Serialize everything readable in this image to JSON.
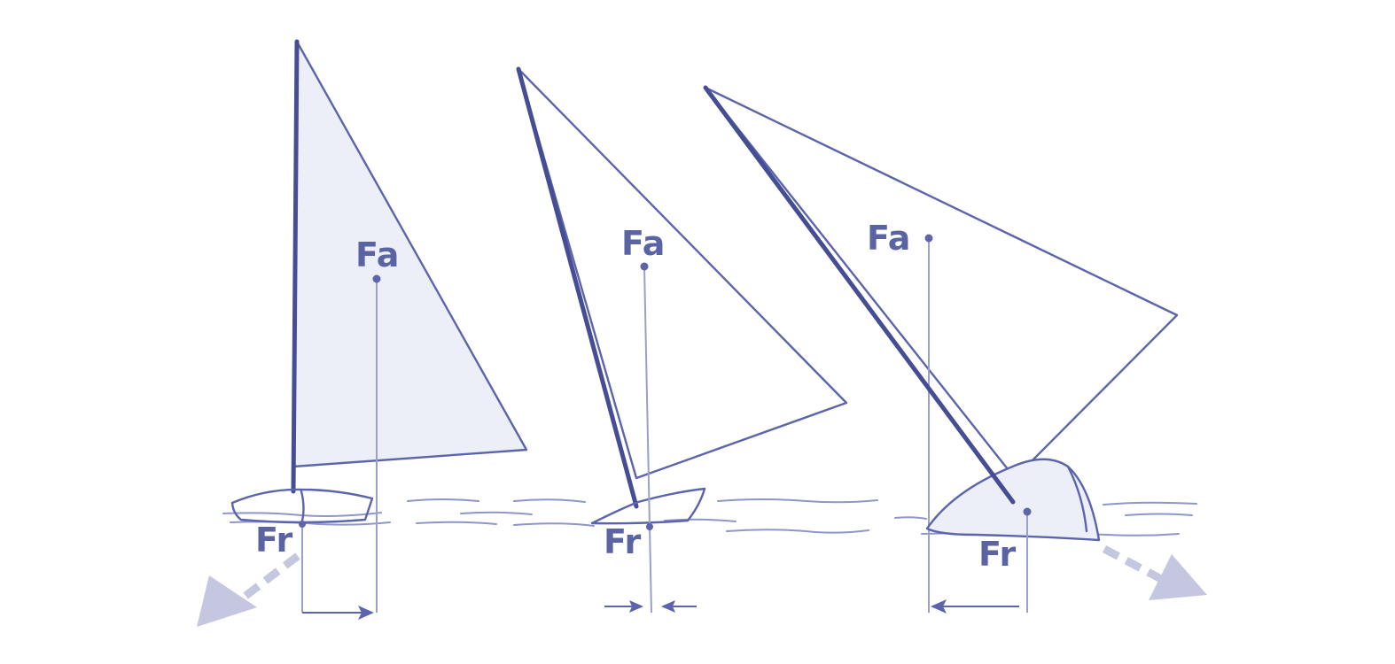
{
  "labels": {
    "force_a": "Fa",
    "force_r": "Fr"
  },
  "colors": {
    "line": "#5c64ac",
    "mast": "#454d94",
    "label": "#5a63a3",
    "sail_shading": "#eceef8",
    "dashed_arrow": "#c4c7df"
  },
  "figures": [
    {
      "id": "upright",
      "heel": "none"
    },
    {
      "id": "moderate-heel",
      "heel": "moderate"
    },
    {
      "id": "strong-heel",
      "heel": "strong"
    }
  ]
}
